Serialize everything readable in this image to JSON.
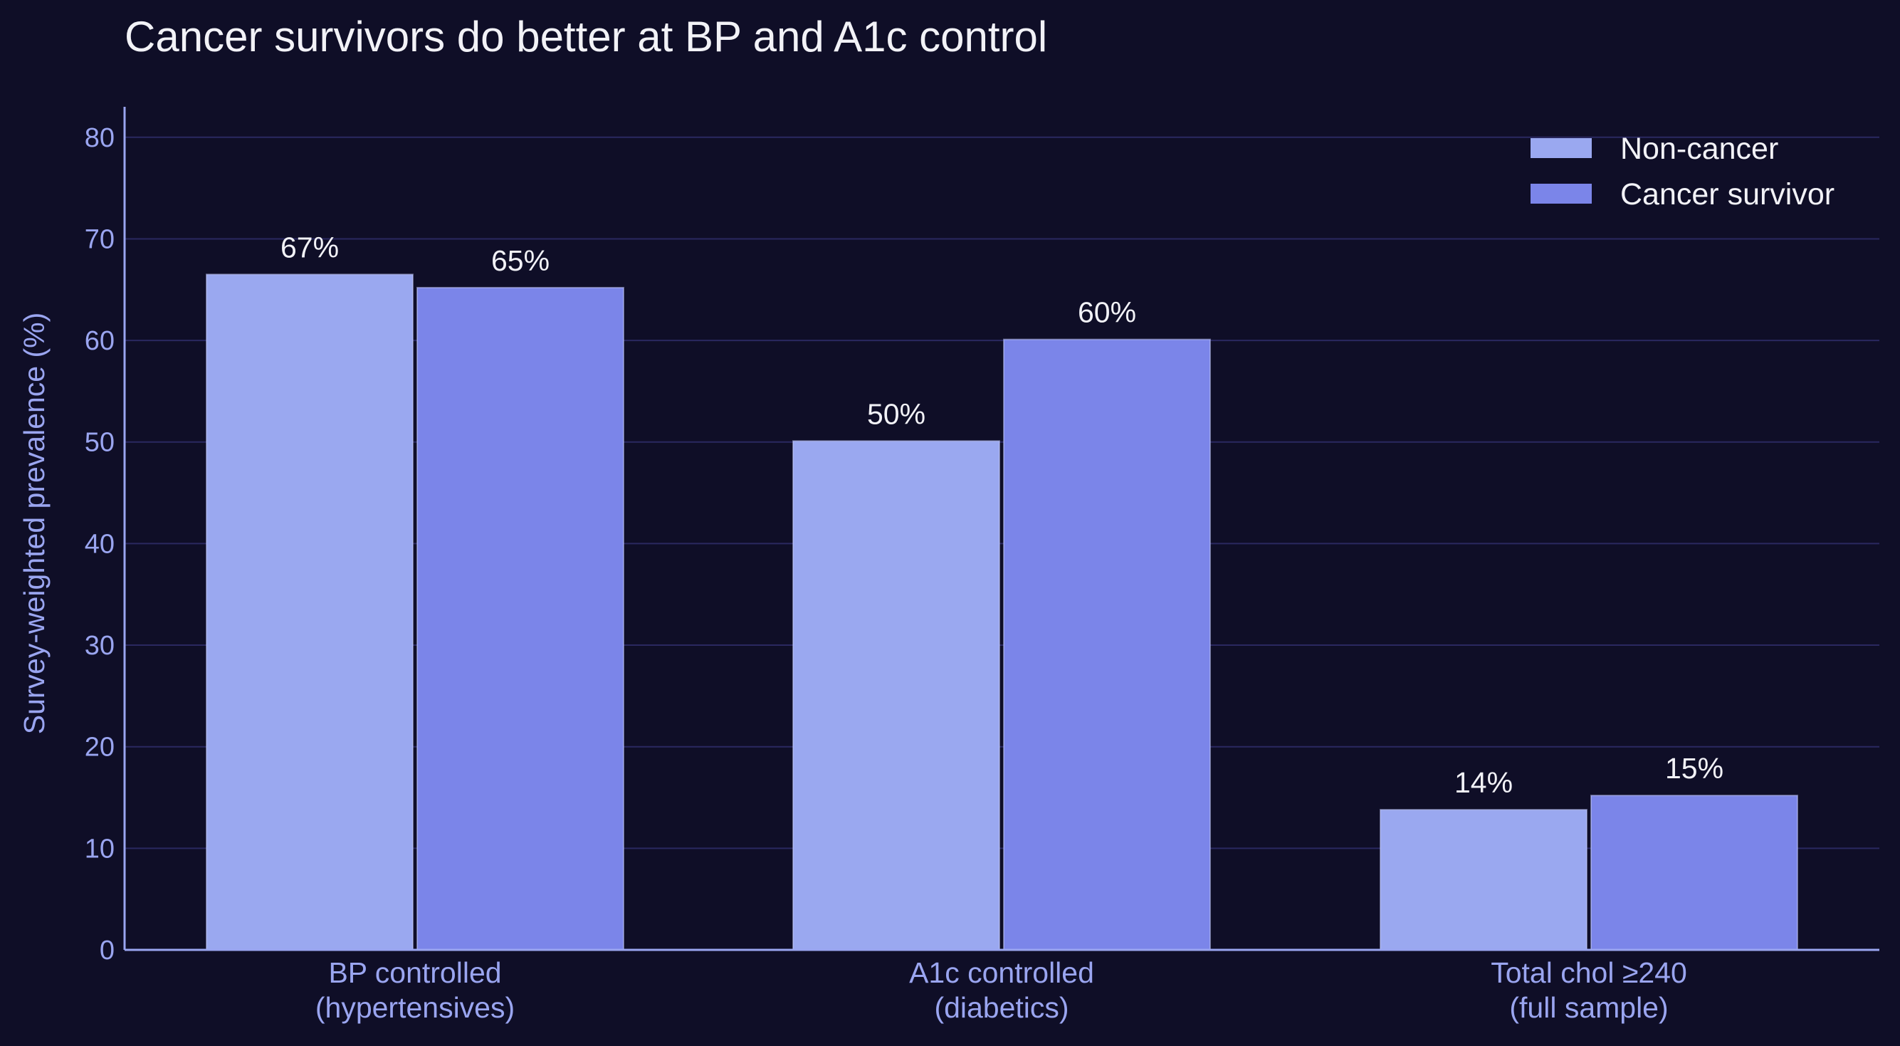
{
  "chart_data": {
    "type": "bar",
    "title": "Cancer survivors do better at BP and A1c control",
    "xlabel": "",
    "ylabel": "Survey-weighted prevalence (%)",
    "ylim": [
      0,
      83
    ],
    "yticks": [
      0,
      10,
      20,
      30,
      40,
      50,
      60,
      70,
      80
    ],
    "grid": true,
    "legend_position": "top-right",
    "categories": [
      [
        "BP controlled",
        "(hypertensives)"
      ],
      [
        "A1c controlled",
        "(diabetics)"
      ],
      [
        "Total chol ≥240",
        "(full sample)"
      ]
    ],
    "series": [
      {
        "name": "Non-cancer",
        "color": "#9aa8f0",
        "values": [
          66.5,
          50.1,
          13.8
        ],
        "labels": [
          "67%",
          "50%",
          "14%"
        ]
      },
      {
        "name": "Cancer survivor",
        "color": "#7b85e9",
        "values": [
          65.2,
          60.1,
          15.2
        ],
        "labels": [
          "65%",
          "60%",
          "15%"
        ]
      }
    ]
  },
  "colors": {
    "background": "#0f0e27",
    "axis": "#9aa5f0",
    "grid": "#2a2860",
    "text": "#f2f2f7"
  }
}
